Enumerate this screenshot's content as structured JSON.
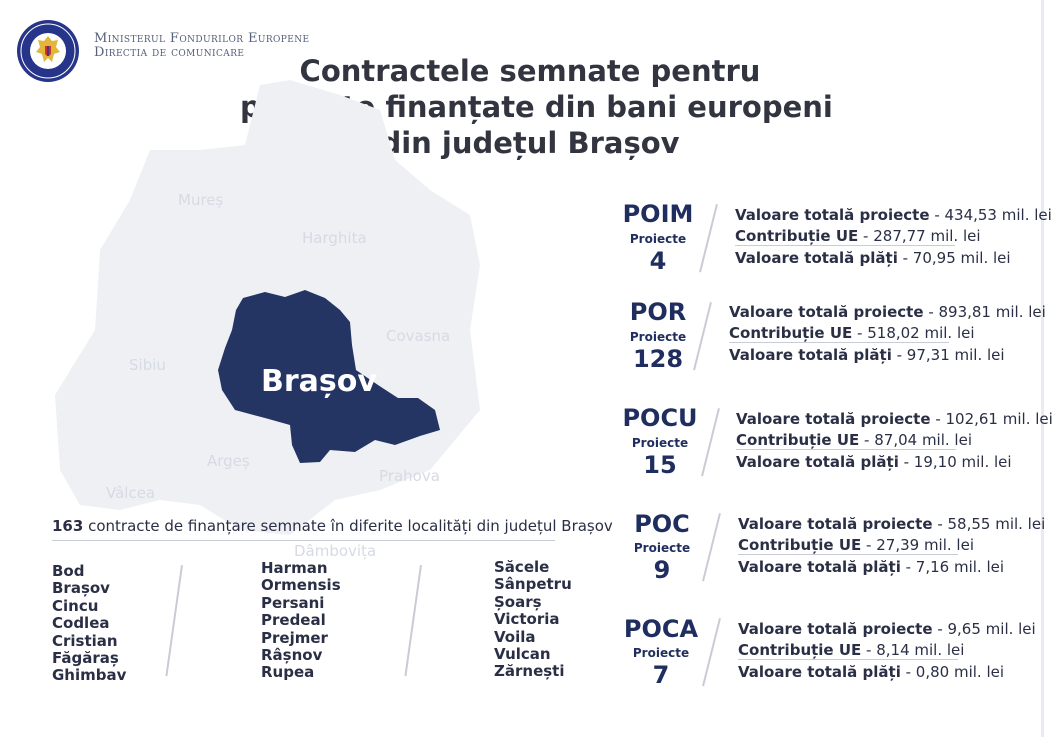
{
  "header": {
    "ministry_line1": "Ministerul Fondurilor Europene",
    "ministry_line2": "Directia de comunicare",
    "logo_text": "GUVERNUL ROMÂNIEI"
  },
  "title": {
    "line1": "Contractele semnate pentru",
    "line2": "proiecte finanțate din bani europeni",
    "line3": "din județul Brașov"
  },
  "map": {
    "highlight": "Brașov",
    "highlight_color": "#243563",
    "neighbour_color": "#eef0f4",
    "counties": [
      "Mureș",
      "Harghita",
      "Covasna",
      "Sibiu",
      "Argeș",
      "Prahova",
      "Vâlcea",
      "Dâmbovița"
    ]
  },
  "localities": {
    "count": "163",
    "caption": "contracte de finanțare semnate în diferite localități din județul Brașov",
    "col1": [
      "Bod",
      "Brașov",
      "Cincu",
      "Codlea",
      "Cristian",
      "Făgăraș",
      "Ghimbav"
    ],
    "col2": [
      "Harman",
      "Ormensis",
      "Persani",
      "Predeal",
      "Prejmer",
      "Râșnov",
      "Rupea"
    ],
    "col3": [
      "Săcele",
      "Sânpetru",
      "Șoarș",
      "Victoria",
      "Voila",
      "Vulcan",
      "Zărnești"
    ]
  },
  "programmes": [
    {
      "name": "POIM",
      "sub": "Proiecte",
      "count": "4",
      "total_label": "Valoare totală proiecte",
      "total_value": "- 434,53 mil. lei",
      "ue_label": "Contribuție UE",
      "ue_value": "- 287,77 mil. lei",
      "plati_label": "Valoare totală plăți",
      "plati_value": "- 70,95 mil. lei"
    },
    {
      "name": "POR",
      "sub": "Proiecte",
      "count": "128",
      "total_label": "Valoare totală proiecte",
      "total_value": "- 893,81 mil. lei",
      "ue_label": "Contribuție UE",
      "ue_value": "- 518,02 mil. lei",
      "plati_label": "Valoare totală plăți",
      "plati_value": "- 97,31 mil. lei"
    },
    {
      "name": "POCU",
      "sub": "Proiecte",
      "count": "15",
      "total_label": "Valoare totală proiecte",
      "total_value": "- 102,61 mil. lei",
      "ue_label": "Contribuție UE",
      "ue_value": "- 87,04 mil. lei",
      "plati_label": "Valoare totală plăți",
      "plati_value": "- 19,10 mil. lei"
    },
    {
      "name": "POC",
      "sub": "Proiecte",
      "count": "9",
      "total_label": "Valoare totală proiecte",
      "total_value": "- 58,55 mil. lei",
      "ue_label": "Contribuție UE",
      "ue_value": "- 27,39 mil. lei",
      "plati_label": "Valoare totală plăți",
      "plati_value": "- 7,16 mil. lei"
    },
    {
      "name": "POCA",
      "sub": "Proiecte",
      "count": "7",
      "total_label": "Valoare totală proiecte",
      "total_value": "- 9,65 mil. lei",
      "ue_label": "Contribuție UE",
      "ue_value": "- 8,14 mil. lei",
      "plati_label": "Valoare totală plăți",
      "plati_value": "- 0,80 mil. lei"
    }
  ]
}
